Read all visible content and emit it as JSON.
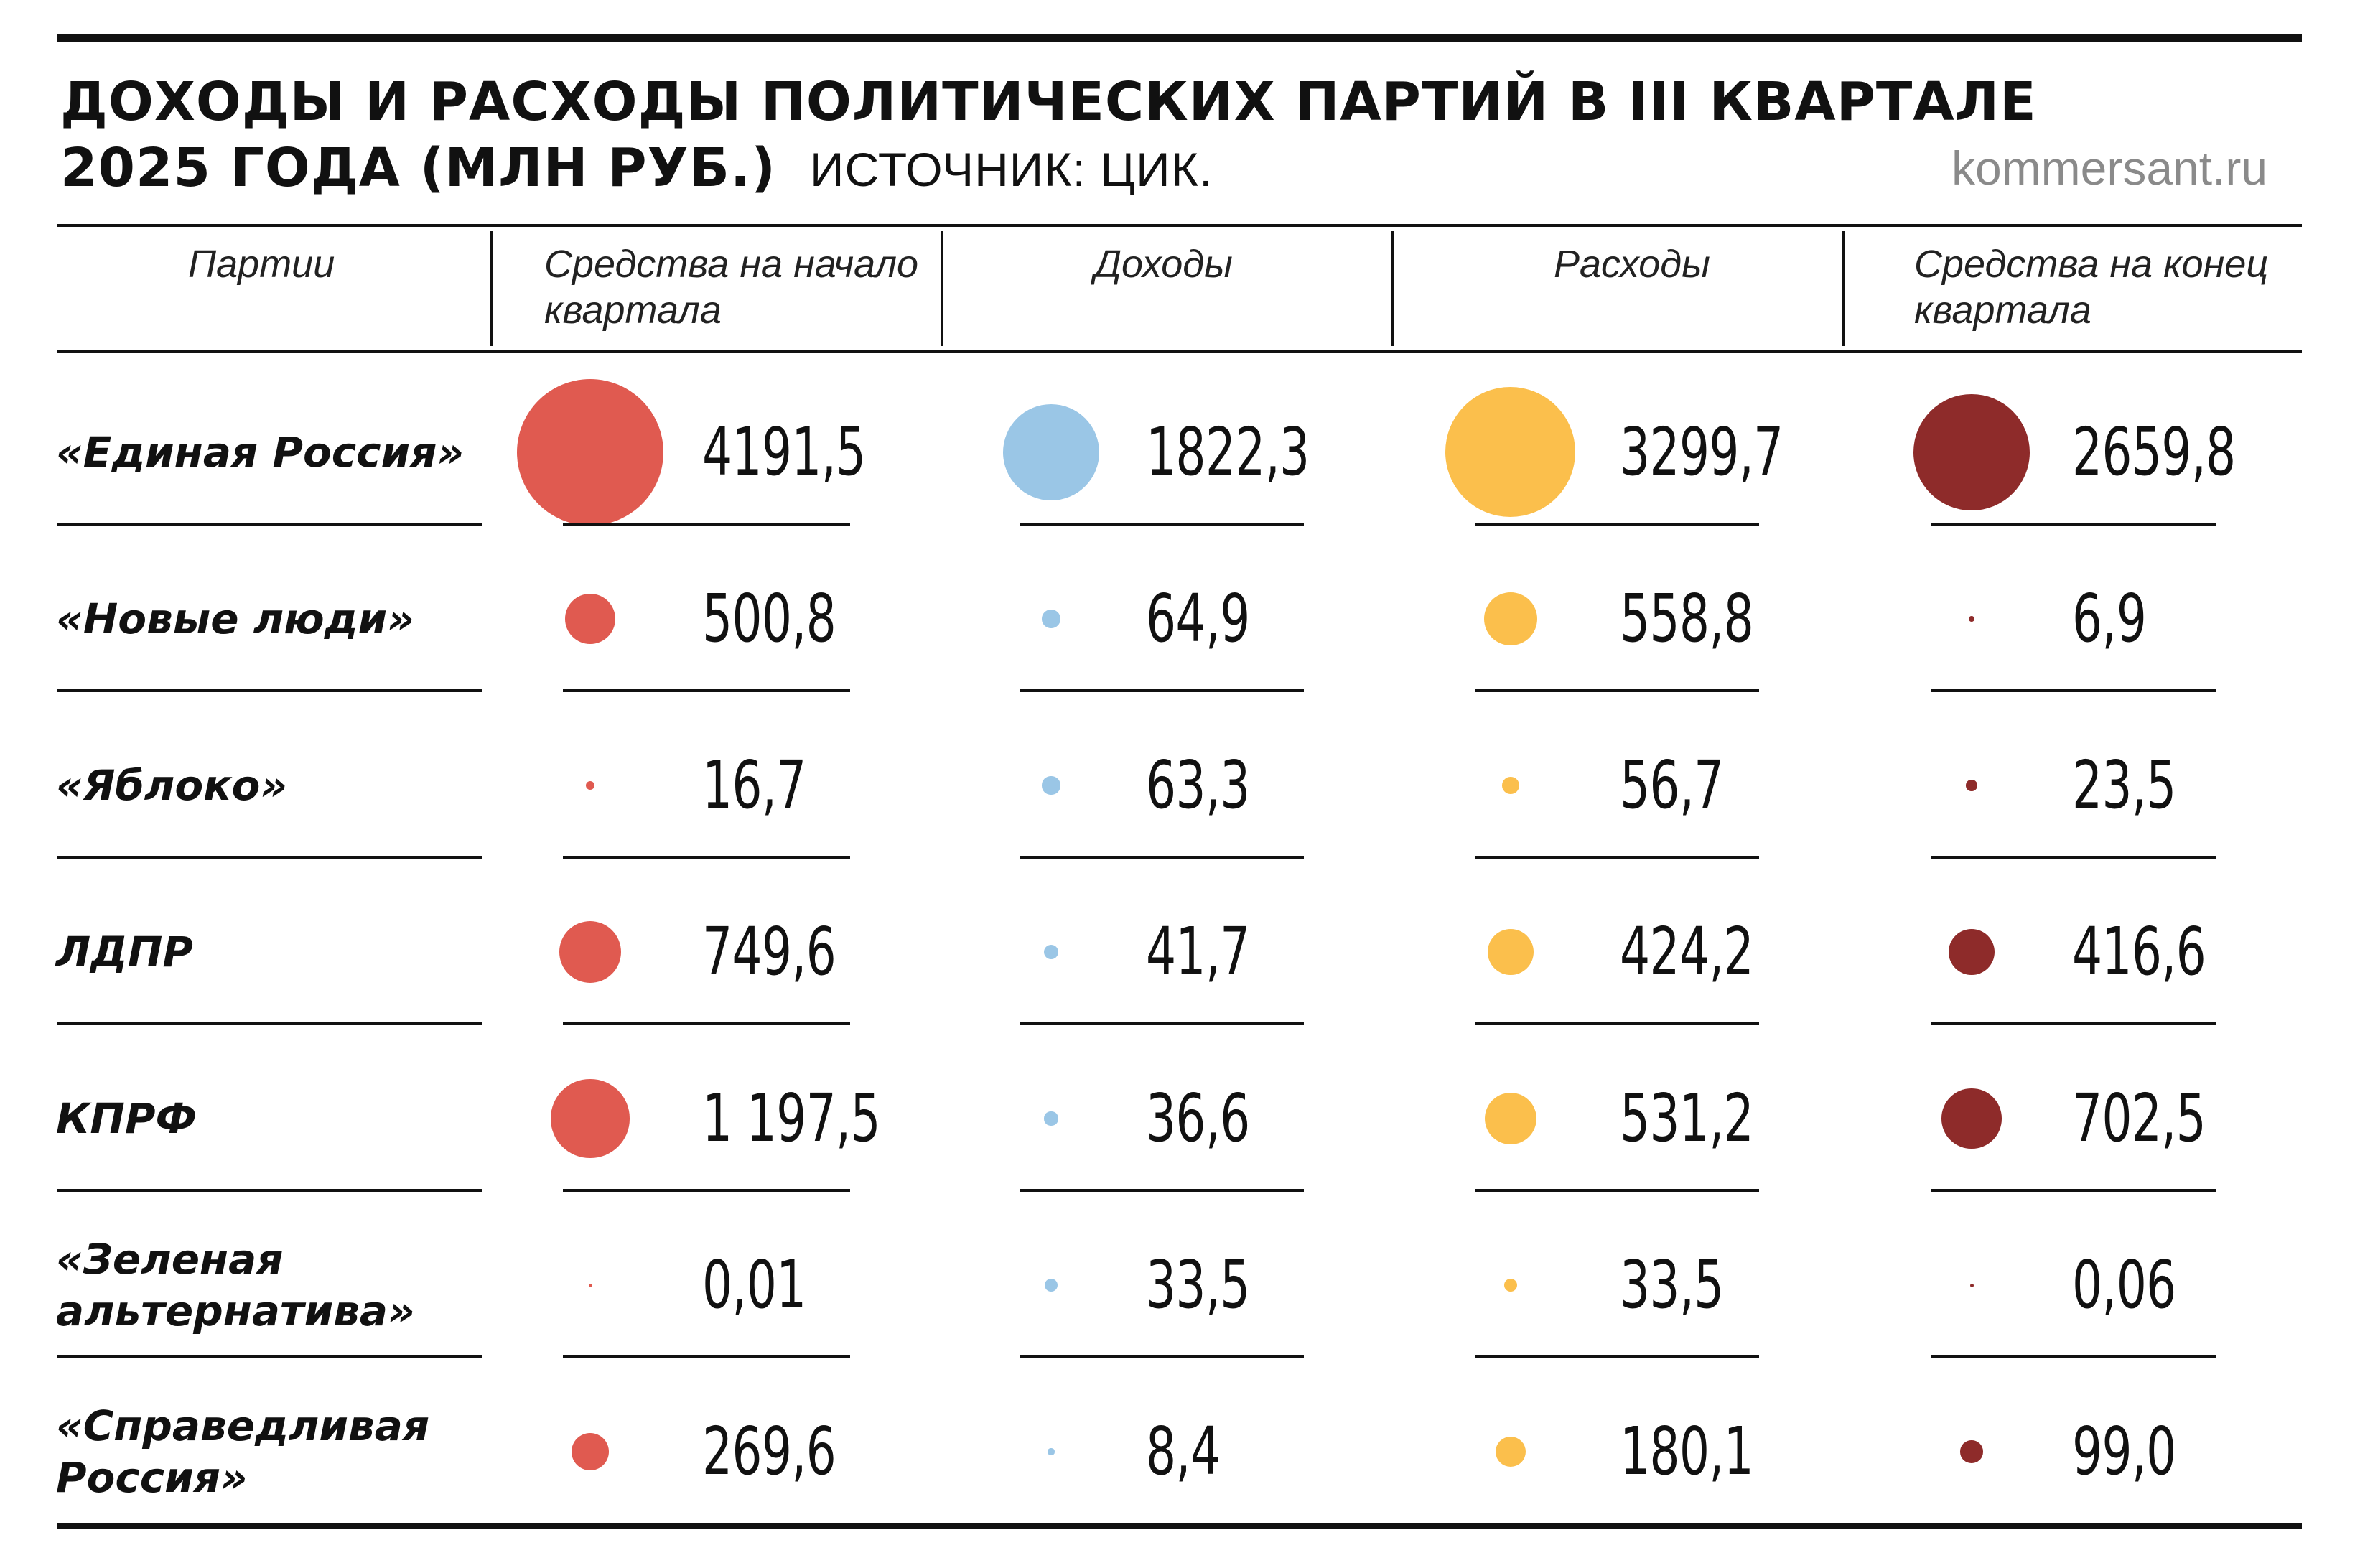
{
  "title_line1": "ДОХОДЫ И РАСХОДЫ ПОЛИТИЧЕСКИХ ПАРТИЙ В III КВАРТАЛЕ",
  "title_line2": "2025 ГОДА (МЛН РУБ.)",
  "source": "ИСТОЧНИК: ЦИК.",
  "site": "kommersant.ru",
  "columns": {
    "party": "Партии",
    "start": "Средства на начало квартала",
    "income": "Доходы",
    "expense": "Расходы",
    "end": "Средства на конец квартала"
  },
  "colors": {
    "start": "#e05a50",
    "income": "#9ac6e6",
    "expense": "#fbbf4c",
    "end": "#8e2b2a"
  },
  "chart_data": {
    "type": "table",
    "title": "ДОХОДЫ И РАСХОДЫ ПОЛИТИЧЕСКИХ ПАРТИЙ В III КВАРТАЛЕ 2025 ГОДА (МЛН РУБ.)",
    "unit": "млн руб.",
    "rows": [
      {
        "party": "«Единая Россия»",
        "start": "4191,5",
        "income": "1822,3",
        "expense": "3299,7",
        "end": "2659,8",
        "values": [
          4191.5,
          1822.3,
          3299.7,
          2659.8
        ]
      },
      {
        "party": "«Новые люди»",
        "start": "500,8",
        "income": "64,9",
        "expense": "558,8",
        "end": "6,9",
        "values": [
          500.8,
          64.9,
          558.8,
          6.9
        ]
      },
      {
        "party": "«Яблоко»",
        "start": "16,7",
        "income": "63,3",
        "expense": "56,7",
        "end": "23,5",
        "values": [
          16.7,
          63.3,
          56.7,
          23.5
        ]
      },
      {
        "party": "ЛДПР",
        "start": "749,6",
        "income": "41,7",
        "expense": "424,2",
        "end": "416,6",
        "values": [
          749.6,
          41.7,
          424.2,
          416.6
        ]
      },
      {
        "party": "КПРФ",
        "start": "1 197,5",
        "income": "36,6",
        "expense": "531,2",
        "end": "702,5",
        "values": [
          1197.5,
          36.6,
          531.2,
          702.5
        ]
      },
      {
        "party": "«Зеленая альтернатива»",
        "start": "0,01",
        "income": "33,5",
        "expense": "33,5",
        "end": "0,06",
        "values": [
          0.01,
          33.5,
          33.5,
          0.06
        ]
      },
      {
        "party": "«Справедливая Россия»",
        "start": "269,6",
        "income": "8,4",
        "expense": "180,1",
        "end": "99,0",
        "values": [
          269.6,
          8.4,
          180.1,
          99.0
        ]
      }
    ]
  }
}
